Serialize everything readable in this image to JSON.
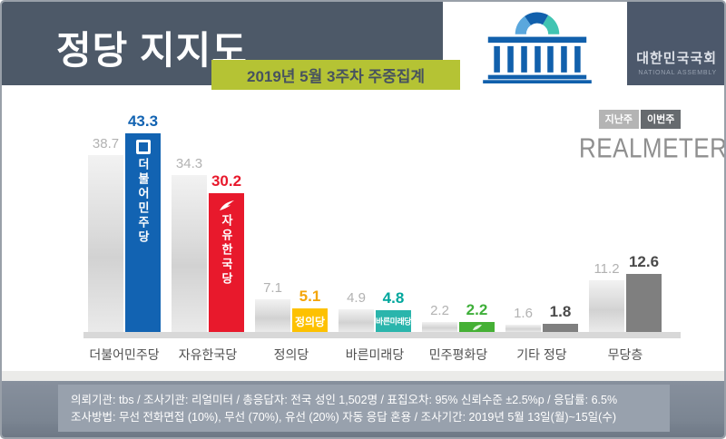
{
  "header": {
    "title": "정당 지지도",
    "banner": "2019년 5월 3주차 주중집계",
    "assembly": {
      "name_kr": "대한민국국회",
      "name_en": "NATIONAL ASSEMBLY"
    }
  },
  "legend": {
    "last_week_label": "지난주",
    "this_week_label": "이번주",
    "brand": "REALMETER"
  },
  "chart_data": {
    "type": "bar",
    "title": "정당 지지도",
    "subtitle": "2019년 5월 3주차 주중집계",
    "unit": "%",
    "categories": [
      "더불어민주당",
      "자유한국당",
      "정의당",
      "바른미래당",
      "민주평화당",
      "기타 정당",
      "무당층"
    ],
    "series": [
      {
        "name": "지난주",
        "values": [
          38.7,
          34.3,
          7.1,
          4.9,
          2.2,
          1.6,
          11.2
        ]
      },
      {
        "name": "이번주",
        "values": [
          43.3,
          30.2,
          5.1,
          4.8,
          2.2,
          1.8,
          12.6
        ]
      }
    ],
    "ylim": [
      0,
      50
    ],
    "grid": false,
    "legend_position": "top-right",
    "parties": [
      {
        "name": "더불어민주당",
        "color": "#1263b2",
        "label_color": "#1263b2",
        "in_bar": "더불어민주당",
        "orient": "v",
        "glyph": "square"
      },
      {
        "name": "자유한국당",
        "color": "#e8192c",
        "label_color": "#e8192c",
        "in_bar": "자유한국당",
        "orient": "v",
        "glyph": "torch"
      },
      {
        "name": "정의당",
        "color": "#fdc101",
        "label_color": "#f3a50a",
        "in_bar": "정의당",
        "orient": "h",
        "glyph": "none"
      },
      {
        "name": "바른미래당",
        "color": "#2ab5ac",
        "label_color": "#00a79d",
        "in_bar": "바른미래당",
        "orient": "h-small",
        "glyph": "none"
      },
      {
        "name": "민주평화당",
        "color": "#45b035",
        "label_color": "#3faf3a",
        "in_bar": "",
        "orient": "none",
        "glyph": "leaf"
      },
      {
        "name": "기타 정당",
        "color": "#7f7f7f",
        "label_color": "#4a4a4a",
        "in_bar": "",
        "orient": "none",
        "glyph": "none"
      },
      {
        "name": "무당층",
        "color": "#7f7f7f",
        "label_color": "#4a4a4a",
        "in_bar": "",
        "orient": "none",
        "glyph": "none"
      }
    ],
    "gray_value_color": "#b2b2b2"
  },
  "footer": {
    "line1": "의뢰기관:  tbs / 조사기관:  리얼미터  / 총응답자:  전국 성인 1,502명  / 표집오차:  95% 신뢰수준 ±2.5%p  /  응답률: 6.5%",
    "line2": "조사방법:  무선 전화면접 (10%), 무선 (70%), 유선 (20%)  자동 응답 혼용  / 조사기간:  2019년 5월 13일(월)~15일(수)"
  }
}
